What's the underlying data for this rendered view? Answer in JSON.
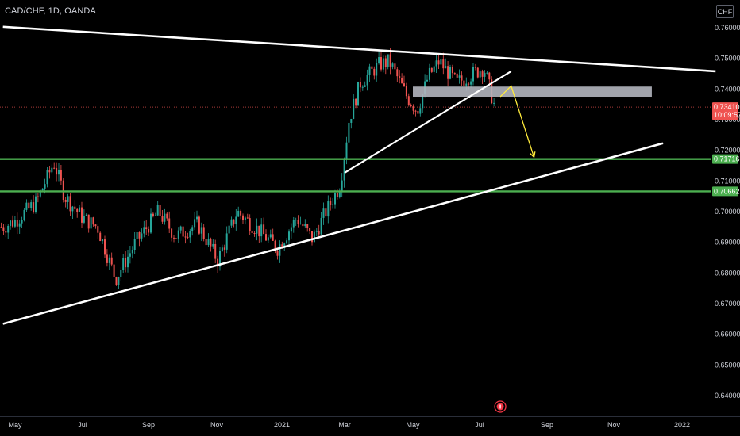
{
  "symbol": "CAD/CHF, 1D, OANDA",
  "currency": "CHF",
  "current_price": "0.73410",
  "countdown": "10:09:57",
  "colors": {
    "up": "#26a69a",
    "down": "#ef5350",
    "trend_line": "#ffffff",
    "support_line": "#4caf50",
    "zone": "#b2b5be",
    "projection": "#ffeb3b"
  },
  "chart_data": {
    "type": "candlestick",
    "y_axis": {
      "ticks": [
        "0.76000",
        "0.75000",
        "0.74000",
        "0.73000",
        "0.72000",
        "0.71000",
        "0.70000",
        "0.69000",
        "0.68000",
        "0.67000",
        "0.66000",
        "0.65000",
        "0.64000"
      ],
      "range": [
        0.6349,
        0.7658
      ]
    },
    "x_axis": {
      "ticks": [
        "May",
        "Jul",
        "Sep",
        "Nov",
        "2021",
        "Mar",
        "May",
        "Jul",
        "Sep",
        "Nov",
        "2022"
      ]
    },
    "series_price_path": [
      [
        "2020-04-20",
        0.695
      ],
      [
        "2020-05-01",
        0.697
      ],
      [
        "2020-05-20",
        0.703
      ],
      [
        "2020-06-05",
        0.716
      ],
      [
        "2020-06-15",
        0.705
      ],
      [
        "2020-07-01",
        0.698
      ],
      [
        "2020-07-15",
        0.695
      ],
      [
        "2020-08-01",
        0.678
      ],
      [
        "2020-08-20",
        0.69
      ],
      [
        "2020-09-10",
        0.7
      ],
      [
        "2020-09-25",
        0.692
      ],
      [
        "2020-10-15",
        0.696
      ],
      [
        "2020-11-02",
        0.684
      ],
      [
        "2020-11-20",
        0.7
      ],
      [
        "2020-12-10",
        0.694
      ],
      [
        "2020-12-28",
        0.688
      ],
      [
        "2021-01-15",
        0.698
      ],
      [
        "2021-01-30",
        0.691
      ],
      [
        "2021-02-10",
        0.699
      ],
      [
        "2021-02-25",
        0.709
      ],
      [
        "2021-03-05",
        0.73
      ],
      [
        "2021-03-15",
        0.742
      ],
      [
        "2021-04-01",
        0.748
      ],
      [
        "2021-04-10",
        0.749
      ],
      [
        "2021-04-25",
        0.738
      ],
      [
        "2021-05-05",
        0.733
      ],
      [
        "2021-05-15",
        0.744
      ],
      [
        "2021-05-25",
        0.749
      ],
      [
        "2021-06-10",
        0.742
      ],
      [
        "2021-06-25",
        0.745
      ],
      [
        "2021-07-05",
        0.747
      ],
      [
        "2021-07-15",
        0.734
      ]
    ],
    "drawings": {
      "upper_trendline": [
        [
          "2020-04-20",
          0.7603
        ],
        [
          "2022-01-31",
          0.7458
        ]
      ],
      "lower_trendline": [
        [
          "2020-04-20",
          0.6634
        ],
        [
          "2021-12-15",
          0.7223
        ]
      ],
      "rising_wedge_line": [
        [
          "2021-03-01",
          0.7127
        ],
        [
          "2021-07-30",
          0.7458
        ]
      ],
      "resistance_zone": {
        "from": "2021-05-01",
        "to": "2021-12-05",
        "low": 0.7375,
        "high": 0.7408
      },
      "support_levels": [
        "0.71716",
        "0.70662"
      ],
      "projection_path": [
        [
          "2021-07-20",
          0.7375
        ],
        [
          "2021-07-30",
          0.741
        ],
        [
          "2021-08-20",
          0.7178
        ]
      ]
    }
  }
}
